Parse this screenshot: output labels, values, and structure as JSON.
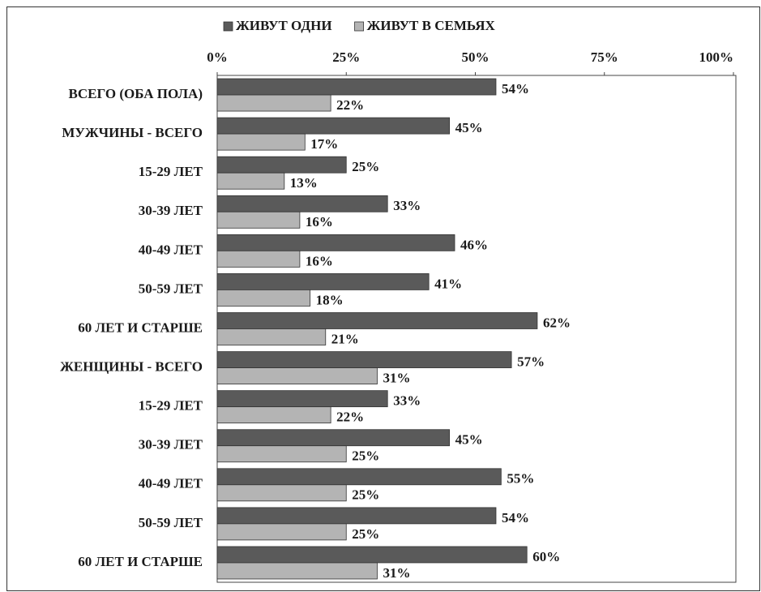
{
  "chart_data": {
    "type": "hbar",
    "categories": [
      "ВСЕГО (ОБА ПОЛА)",
      "МУЖЧИНЫ - ВСЕГО",
      "15-29 ЛЕТ",
      "30-39 ЛЕТ",
      "40-49 ЛЕТ",
      "50-59 ЛЕТ",
      "60 ЛЕТ И СТАРШЕ",
      "ЖЕНЩИНЫ - ВСЕГО",
      "15-29 ЛЕТ",
      "30-39 ЛЕТ",
      "40-49 ЛЕТ",
      "50-59 ЛЕТ",
      "60 ЛЕТ И СТАРШЕ"
    ],
    "series": [
      {
        "name": "ЖИВУТ ОДНИ",
        "color": "#5a5a5a",
        "values": [
          54,
          45,
          25,
          33,
          46,
          41,
          62,
          57,
          33,
          45,
          55,
          54,
          60
        ],
        "value_labels": [
          "54%",
          "45%",
          "25%",
          "33%",
          "46%",
          "41%",
          "62%",
          "57%",
          "33%",
          "45%",
          "55%",
          "54%",
          "60%"
        ]
      },
      {
        "name": "ЖИВУТ В СЕМЬЯХ",
        "color": "#b4b4b4",
        "values": [
          22,
          17,
          13,
          16,
          16,
          18,
          21,
          31,
          22,
          25,
          25,
          25,
          31
        ],
        "value_labels": [
          "22%",
          "17%",
          "13%",
          "16%",
          "16%",
          "18%",
          "21%",
          "31%",
          "22%",
          "25%",
          "25%",
          "25%",
          "31%"
        ]
      }
    ],
    "xlim": [
      0,
      100
    ],
    "xticks": [
      {
        "value": 0,
        "label": "0%"
      },
      {
        "value": 25,
        "label": "25%"
      },
      {
        "value": 50,
        "label": "50%"
      },
      {
        "value": 75,
        "label": "75%"
      },
      {
        "value": 100,
        "label": "100%"
      }
    ],
    "grid": false,
    "legend": "top"
  }
}
